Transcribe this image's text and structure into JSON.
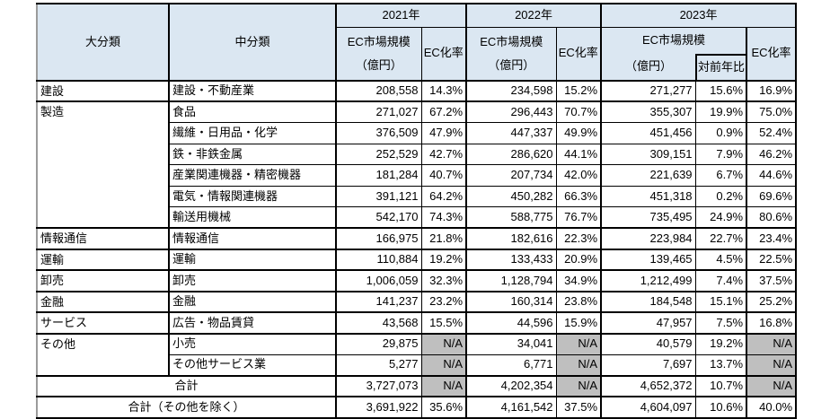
{
  "colors": {
    "header_bg": "#dbe7f2",
    "na_bg": "#bfbfbf",
    "border": "#000000",
    "left_edge": "#9b9b9b",
    "text": "#000000"
  },
  "table": {
    "headers": {
      "major": "大分類",
      "minor": "中分類",
      "years": [
        {
          "label": "2021年",
          "size_label": "EC市場規模",
          "size_unit": "（億円）",
          "rate_label": "EC化率"
        },
        {
          "label": "2022年",
          "size_label": "EC市場規模",
          "size_unit": "（億円）",
          "rate_label": "EC化率"
        },
        {
          "label": "2023年",
          "size_label": "EC市場規模",
          "size_unit": "（億円）",
          "yoy_label": "対前年比",
          "rate_label": "EC化率"
        }
      ]
    },
    "rows": [
      {
        "major": "建設",
        "rowspan": 1,
        "minor": "建設・不動産業",
        "group_start": true,
        "c": [
          "208,558",
          "14.3%",
          "234,598",
          "15.2%",
          "271,277",
          "15.6%",
          "16.9%"
        ]
      },
      {
        "major": "製造",
        "rowspan": 6,
        "minor": "食品",
        "group_start": true,
        "c": [
          "271,027",
          "67.2%",
          "296,443",
          "70.7%",
          "355,307",
          "19.9%",
          "75.0%"
        ]
      },
      {
        "minor": "繊維・日用品・化学",
        "c": [
          "376,509",
          "47.9%",
          "447,337",
          "49.9%",
          "451,456",
          "0.9%",
          "52.4%"
        ]
      },
      {
        "minor": "鉄・非鉄金属",
        "c": [
          "252,529",
          "42.7%",
          "286,620",
          "44.1%",
          "309,151",
          "7.9%",
          "46.2%"
        ]
      },
      {
        "minor": "産業関連機器・精密機器",
        "c": [
          "181,284",
          "40.7%",
          "207,734",
          "42.0%",
          "221,639",
          "6.7%",
          "44.6%"
        ]
      },
      {
        "minor": "電気・情報関連機器",
        "c": [
          "391,121",
          "64.2%",
          "450,282",
          "66.3%",
          "451,318",
          "0.2%",
          "69.6%"
        ]
      },
      {
        "minor": "輸送用機械",
        "c": [
          "542,170",
          "74.3%",
          "588,775",
          "76.7%",
          "735,495",
          "24.9%",
          "80.6%"
        ]
      },
      {
        "major": "情報通信",
        "rowspan": 1,
        "minor": "情報通信",
        "group_start": true,
        "c": [
          "166,975",
          "21.8%",
          "182,616",
          "22.3%",
          "223,984",
          "22.7%",
          "23.4%"
        ]
      },
      {
        "major": "運輸",
        "rowspan": 1,
        "minor": "運輸",
        "group_start": true,
        "c": [
          "110,884",
          "19.2%",
          "133,433",
          "20.9%",
          "139,465",
          "4.5%",
          "22.5%"
        ]
      },
      {
        "major": "卸売",
        "rowspan": 1,
        "minor": "卸売",
        "group_start": true,
        "c": [
          "1,006,059",
          "32.3%",
          "1,128,794",
          "34.9%",
          "1,212,499",
          "7.4%",
          "37.5%"
        ]
      },
      {
        "major": "金融",
        "rowspan": 1,
        "minor": "金融",
        "group_start": true,
        "c": [
          "141,237",
          "23.2%",
          "160,314",
          "23.8%",
          "184,548",
          "15.1%",
          "25.2%"
        ]
      },
      {
        "major": "サービス",
        "rowspan": 1,
        "minor": "広告・物品賃貸",
        "group_start": true,
        "c": [
          "43,568",
          "15.5%",
          "44,596",
          "15.9%",
          "47,957",
          "7.5%",
          "16.8%"
        ]
      },
      {
        "major": "その他",
        "rowspan": 2,
        "minor": "小売",
        "group_start": true,
        "c": [
          "29,875",
          "N/A",
          "34,041",
          "N/A",
          "40,579",
          "19.2%",
          "N/A"
        ]
      },
      {
        "minor": "その他サービス業",
        "c": [
          "5,277",
          "N/A",
          "6,771",
          "N/A",
          "7,697",
          "13.7%",
          "N/A"
        ]
      }
    ],
    "totals": [
      {
        "label": "合計",
        "c": [
          "3,727,073",
          "N/A",
          "4,202,354",
          "N/A",
          "4,652,372",
          "10.7%",
          "N/A"
        ]
      },
      {
        "label": "合計（その他を除く）",
        "c": [
          "3,691,922",
          "35.6%",
          "4,161,542",
          "37.5%",
          "4,604,097",
          "10.6%",
          "40.0%"
        ]
      }
    ]
  }
}
